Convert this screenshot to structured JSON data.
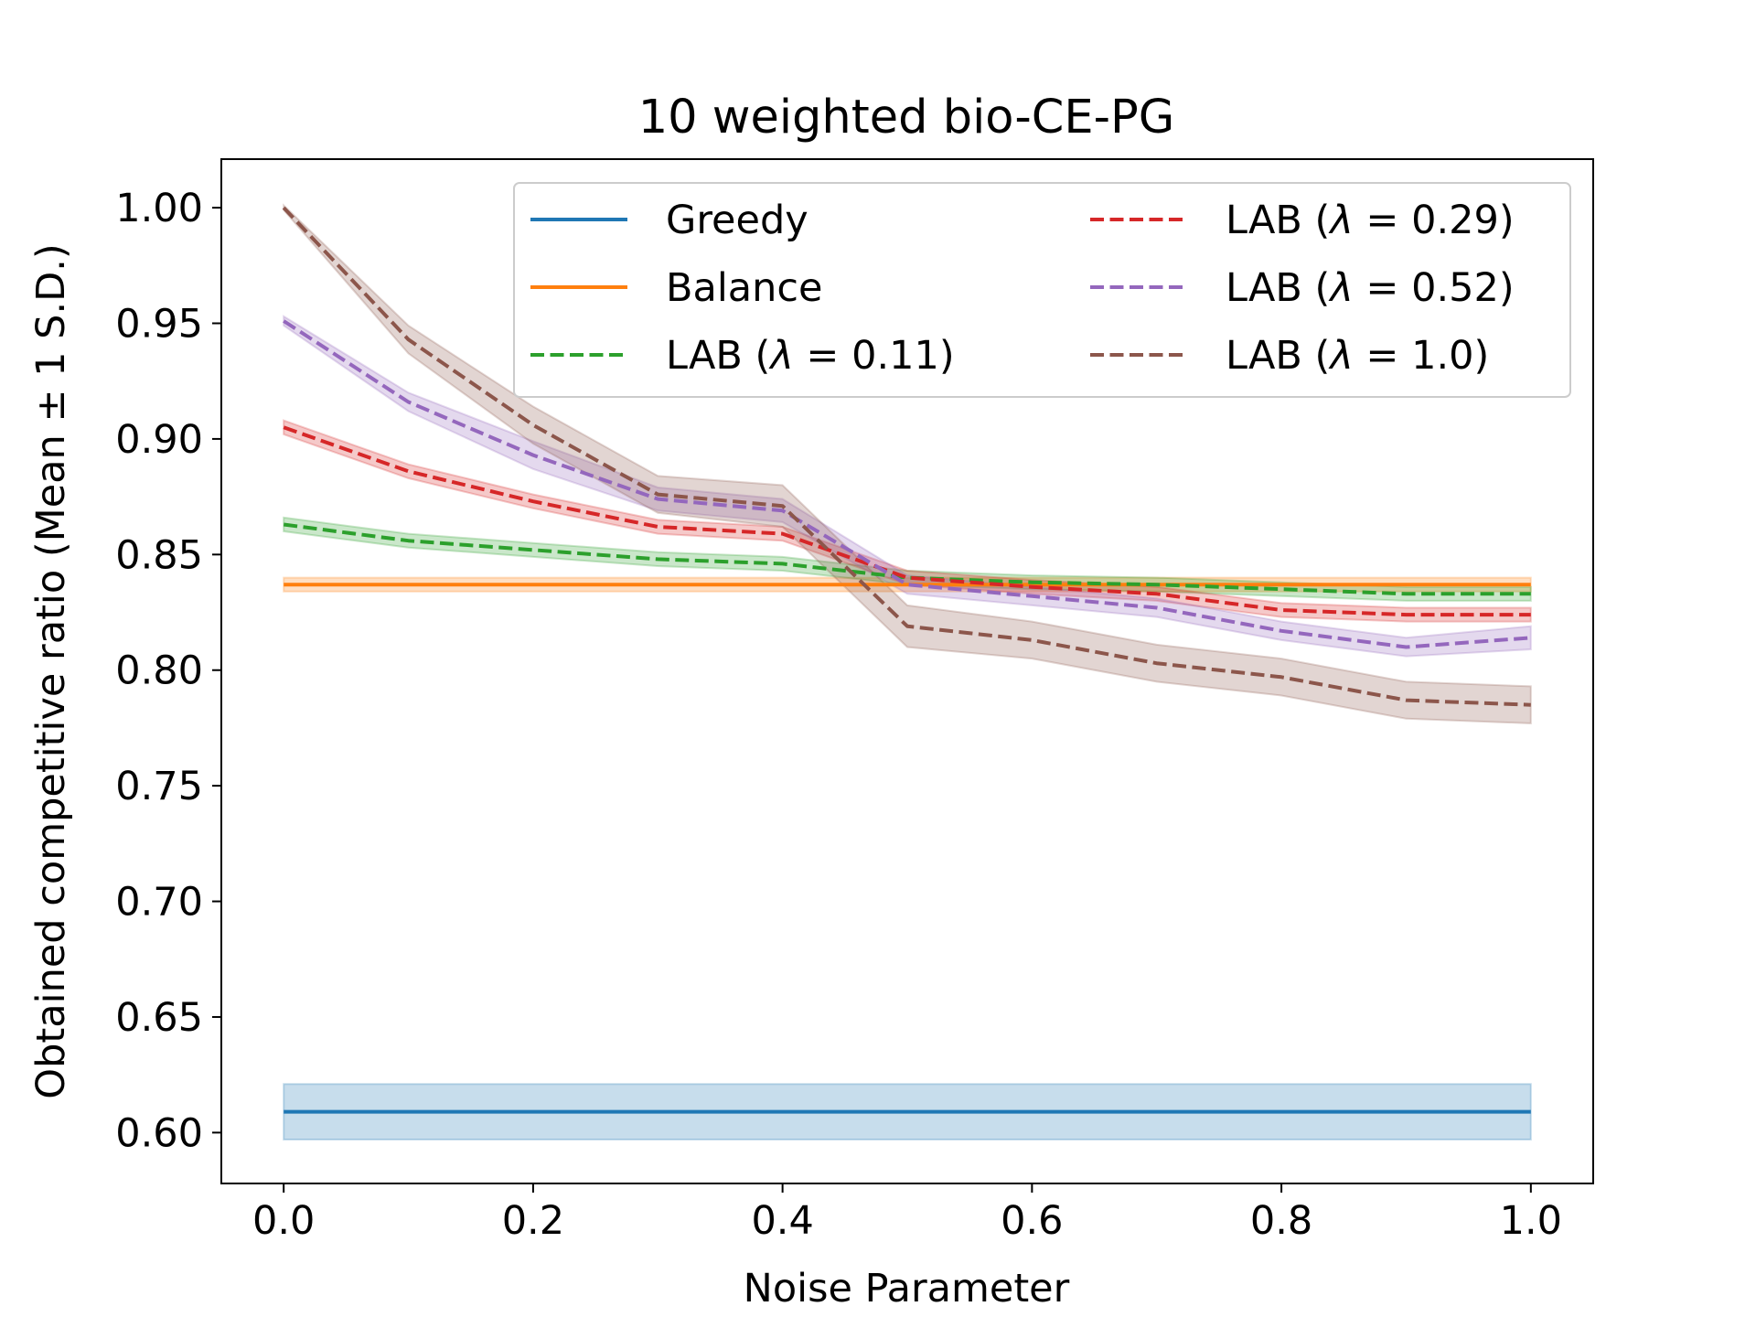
{
  "chart_data": {
    "type": "line",
    "title": "10 weighted bio-CE-PG",
    "xlabel": "Noise Parameter",
    "ylabel": "Obtained competitive ratio (Mean ± 1 S.D.)",
    "xlim": [
      -0.05,
      1.05
    ],
    "ylim": [
      0.578,
      1.021
    ],
    "xticks": [
      "0.0",
      "0.2",
      "0.4",
      "0.6",
      "0.8",
      "1.0"
    ],
    "xtick_values": [
      0.0,
      0.2,
      0.4,
      0.6,
      0.8,
      1.0
    ],
    "yticks": [
      "0.60",
      "0.65",
      "0.70",
      "0.75",
      "0.80",
      "0.85",
      "0.90",
      "0.95",
      "1.00"
    ],
    "ytick_values": [
      0.6,
      0.65,
      0.7,
      0.75,
      0.8,
      0.85,
      0.9,
      0.95,
      1.0
    ],
    "legend_position": "top-right",
    "legend_columns": 2,
    "x": [
      0.0,
      0.1,
      0.2,
      0.3,
      0.4,
      0.5,
      0.6,
      0.7,
      0.8,
      0.9,
      1.0
    ],
    "series": [
      {
        "name": "Greedy",
        "label_prefix": "Greedy",
        "label_lambda": "",
        "color": "#1f77b4",
        "dash": "solid",
        "values": [
          0.609,
          0.609,
          0.609,
          0.609,
          0.609,
          0.609,
          0.609,
          0.609,
          0.609,
          0.609,
          0.609
        ],
        "sd": [
          0.012,
          0.012,
          0.012,
          0.012,
          0.012,
          0.012,
          0.012,
          0.012,
          0.012,
          0.012,
          0.012
        ]
      },
      {
        "name": "Balance",
        "label_prefix": "Balance",
        "label_lambda": "",
        "color": "#ff7f0e",
        "dash": "solid",
        "values": [
          0.837,
          0.837,
          0.837,
          0.837,
          0.837,
          0.837,
          0.837,
          0.837,
          0.837,
          0.837,
          0.837
        ],
        "sd": [
          0.003,
          0.003,
          0.003,
          0.003,
          0.003,
          0.003,
          0.003,
          0.003,
          0.003,
          0.003,
          0.003
        ]
      },
      {
        "name": "LAB (λ = 0.11)",
        "label_prefix": "LAB (",
        "label_lambda": " = 0.11)",
        "color": "#2ca02c",
        "dash": "dashed",
        "values": [
          0.863,
          0.856,
          0.852,
          0.848,
          0.846,
          0.84,
          0.838,
          0.837,
          0.835,
          0.833,
          0.833
        ],
        "sd": [
          0.003,
          0.003,
          0.003,
          0.003,
          0.003,
          0.003,
          0.003,
          0.003,
          0.003,
          0.003,
          0.003
        ]
      },
      {
        "name": "LAB (λ = 0.29)",
        "label_prefix": "LAB (",
        "label_lambda": " = 0.29)",
        "color": "#d62728",
        "dash": "dashed",
        "values": [
          0.905,
          0.886,
          0.873,
          0.862,
          0.859,
          0.84,
          0.836,
          0.833,
          0.826,
          0.824,
          0.824
        ],
        "sd": [
          0.003,
          0.003,
          0.003,
          0.003,
          0.003,
          0.003,
          0.003,
          0.003,
          0.003,
          0.003,
          0.003
        ]
      },
      {
        "name": "LAB (λ = 0.52)",
        "label_prefix": "LAB (",
        "label_lambda": " = 0.52)",
        "color": "#9467bd",
        "dash": "dashed",
        "values": [
          0.951,
          0.916,
          0.893,
          0.874,
          0.869,
          0.837,
          0.832,
          0.827,
          0.817,
          0.81,
          0.814
        ],
        "sd": [
          0.002,
          0.004,
          0.006,
          0.005,
          0.005,
          0.004,
          0.004,
          0.004,
          0.004,
          0.004,
          0.005
        ]
      },
      {
        "name": "LAB (λ = 1.0)",
        "label_prefix": "LAB (",
        "label_lambda": " = 1.0)",
        "color": "#8c564b",
        "dash": "dashed",
        "values": [
          1.0,
          0.943,
          0.906,
          0.876,
          0.871,
          0.819,
          0.813,
          0.803,
          0.797,
          0.787,
          0.785
        ],
        "sd": [
          0.001,
          0.006,
          0.008,
          0.008,
          0.009,
          0.009,
          0.008,
          0.008,
          0.008,
          0.008,
          0.008
        ]
      }
    ]
  }
}
